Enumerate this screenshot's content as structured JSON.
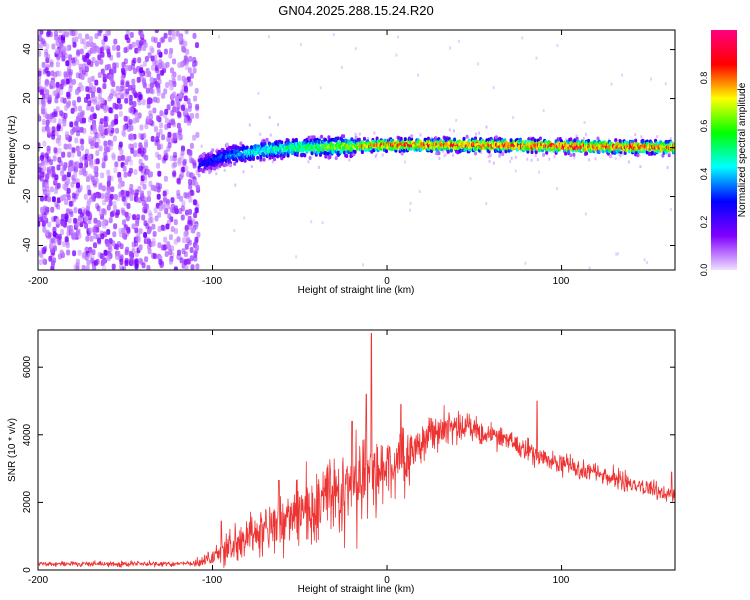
{
  "title": "GN04.2025.288.15.24.R20",
  "chart_data": [
    {
      "type": "heatmap",
      "title": "GN04.2025.288.15.24.R20",
      "xlabel": "Height of straight line (km)",
      "ylabel": "Frequency (Hz)",
      "xlim": [
        -200,
        165
      ],
      "ylim": [
        -50,
        48
      ],
      "xticks": [
        "-200",
        "-100",
        "0",
        "100"
      ],
      "yticks": [
        "-40",
        "-20",
        "0",
        "20",
        "40"
      ],
      "xtick_values": [
        -200,
        -100,
        0,
        100
      ],
      "ytick_values": [
        -40,
        -20,
        0,
        20,
        40
      ],
      "trend": {
        "description": "Diffuse noise for heights below about -108 km, then a narrow band that rises from about -7 Hz near -108 km to about 0 Hz from -20 km onward, strongest (amplitude near 0.9) from 0 to 165 km",
        "band_center_hz": [
          [
            -108,
            -7
          ],
          [
            -90,
            -3
          ],
          [
            -70,
            -1
          ],
          [
            -50,
            0
          ],
          [
            -20,
            0.5
          ],
          [
            0,
            1
          ],
          [
            50,
            1
          ],
          [
            100,
            0.5
          ],
          [
            165,
            0
          ]
        ],
        "band_peak_amplitude": [
          [
            -108,
            0.25
          ],
          [
            -80,
            0.45
          ],
          [
            -40,
            0.6
          ],
          [
            0,
            0.85
          ],
          [
            100,
            0.9
          ],
          [
            165,
            0.85
          ]
        ],
        "noise_region_km": [
          -200,
          -108
        ]
      },
      "colorbar": {
        "label": "Normalized spectral amplitude",
        "range": [
          0.0,
          1.0
        ],
        "ticks": [
          "0.0",
          "0.2",
          "0.4",
          "0.6",
          "0.8"
        ],
        "tick_values": [
          0.0,
          0.2,
          0.4,
          0.6,
          0.8
        ],
        "colormap": [
          "#f0e0ff",
          "#8000ff",
          "#0000ff",
          "#00ffff",
          "#00ff00",
          "#ffff00",
          "#ff0000",
          "#ff0080"
        ]
      }
    },
    {
      "type": "line",
      "xlabel": "Height of straight line (km)",
      "ylabel": "SNR (10 * v/v)",
      "xlim": [
        -200,
        165
      ],
      "ylim": [
        0,
        7100
      ],
      "xticks": [
        "-200",
        "-100",
        "0",
        "100"
      ],
      "yticks": [
        "0",
        "2000",
        "4000",
        "6000"
      ],
      "xtick_values": [
        -200,
        -100,
        0,
        100
      ],
      "ytick_values": [
        0,
        2000,
        4000,
        6000
      ],
      "color": "#ee3333",
      "series": [
        {
          "name": "SNR",
          "envelope": [
            [
              -200,
              180
            ],
            [
              -150,
              180
            ],
            [
              -110,
              200
            ],
            [
              -100,
              350
            ],
            [
              -90,
              700
            ],
            [
              -70,
              1200
            ],
            [
              -60,
              1500
            ],
            [
              -40,
              1900
            ],
            [
              -25,
              2500
            ],
            [
              -12,
              2900
            ],
            [
              -5,
              3000
            ],
            [
              10,
              3200
            ],
            [
              20,
              3800
            ],
            [
              35,
              4200
            ],
            [
              50,
              4200
            ],
            [
              70,
              3800
            ],
            [
              90,
              3300
            ],
            [
              110,
              3000
            ],
            [
              130,
              2700
            ],
            [
              150,
              2400
            ],
            [
              165,
              2200
            ]
          ],
          "spread": [
            [
              -200,
              60
            ],
            [
              -110,
              80
            ],
            [
              -100,
              250
            ],
            [
              -80,
              600
            ],
            [
              -50,
              900
            ],
            [
              -20,
              1300
            ],
            [
              0,
              1000
            ],
            [
              20,
              600
            ],
            [
              50,
              350
            ],
            [
              100,
              280
            ],
            [
              165,
              250
            ]
          ],
          "spikes": [
            [
              -95,
              1450
            ],
            [
              -62,
              2650
            ],
            [
              -20,
              4400
            ],
            [
              -12,
              5200
            ],
            [
              -9,
              7000
            ],
            [
              8,
              4900
            ],
            [
              86,
              5000
            ],
            [
              163,
              2900
            ]
          ]
        }
      ]
    }
  ]
}
